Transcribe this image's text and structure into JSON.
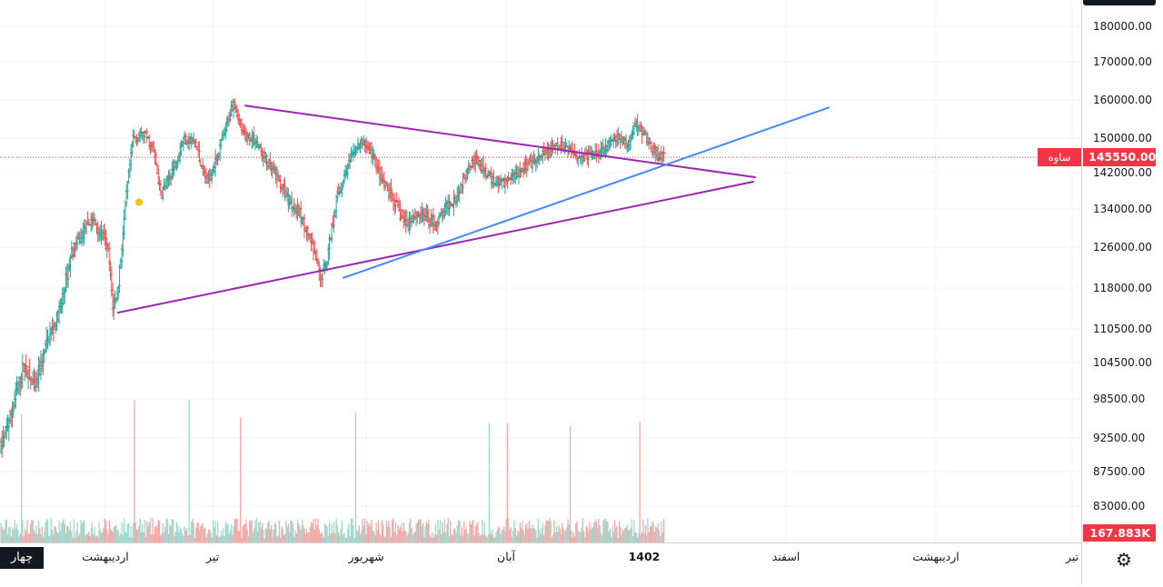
{
  "chart_data": {
    "type": "bar",
    "subtype": "ohlc",
    "symbol": "ساوه",
    "last_price": "145550.00",
    "last_price_value": 145550,
    "volume_label": "167.883K",
    "corner_label": "چهار",
    "price_ticks": [
      180000,
      170000,
      160000,
      150000,
      142000,
      134000,
      126000,
      118000,
      110500,
      104500,
      98500,
      92500,
      87500,
      83000
    ],
    "price_tick_labels": [
      "180000.00",
      "170000.00",
      "160000.00",
      "150000.00",
      "142000.00",
      "134000.00",
      "126000.00",
      "118000.00",
      "110500.00",
      "104500.00",
      "98500.00",
      "92500.00",
      "87500.00",
      "83000.00"
    ],
    "time_labels": [
      {
        "text": "اردیبهشت",
        "bold": false
      },
      {
        "text": "تیر",
        "bold": false
      },
      {
        "text": "شهریور",
        "bold": false
      },
      {
        "text": "آبان",
        "bold": false
      },
      {
        "text": "1402",
        "bold": true
      },
      {
        "text": "اسفند",
        "bold": false
      },
      {
        "text": "اردیبهشت",
        "bold": false
      },
      {
        "text": "تیر",
        "bold": false
      }
    ],
    "series": [
      {
        "name": "ohlc",
        "anchors": [
          [
            0,
            91000
          ],
          [
            10,
            97000
          ],
          [
            20,
            104000
          ],
          [
            30,
            100000
          ],
          [
            40,
            108000
          ],
          [
            52,
            114000
          ],
          [
            62,
            125000
          ],
          [
            70,
            128000
          ],
          [
            80,
            132000
          ],
          [
            90,
            128000
          ],
          [
            94,
            125000
          ],
          [
            98,
            115000
          ],
          [
            102,
            117000
          ],
          [
            106,
            126000
          ],
          [
            110,
            137000
          ],
          [
            116,
            150000
          ],
          [
            126,
            151000
          ],
          [
            134,
            147000
          ],
          [
            140,
            137000
          ],
          [
            146,
            140000
          ],
          [
            154,
            145000
          ],
          [
            160,
            150000
          ],
          [
            170,
            149000
          ],
          [
            180,
            140000
          ],
          [
            186,
            143000
          ],
          [
            196,
            151000
          ],
          [
            204,
            160000
          ],
          [
            212,
            151000
          ],
          [
            222,
            150000
          ],
          [
            232,
            145000
          ],
          [
            242,
            141000
          ],
          [
            252,
            136000
          ],
          [
            262,
            133000
          ],
          [
            272,
            127000
          ],
          [
            280,
            120000
          ],
          [
            286,
            124000
          ],
          [
            294,
            136000
          ],
          [
            302,
            142000
          ],
          [
            310,
            147000
          ],
          [
            318,
            149000
          ],
          [
            326,
            146000
          ],
          [
            334,
            140000
          ],
          [
            344,
            136000
          ],
          [
            354,
            131000
          ],
          [
            364,
            133000
          ],
          [
            374,
            132000
          ],
          [
            382,
            131000
          ],
          [
            392,
            135000
          ],
          [
            400,
            137000
          ],
          [
            410,
            144000
          ],
          [
            416,
            145000
          ],
          [
            424,
            142000
          ],
          [
            432,
            140000
          ],
          [
            442,
            140000
          ],
          [
            456,
            143000
          ],
          [
            466,
            144000
          ],
          [
            476,
            146000
          ],
          [
            486,
            148000
          ],
          [
            496,
            148000
          ],
          [
            506,
            146000
          ],
          [
            518,
            146000
          ],
          [
            530,
            148000
          ],
          [
            542,
            150000
          ],
          [
            550,
            148000
          ],
          [
            556,
            154000
          ],
          [
            564,
            151000
          ],
          [
            572,
            147000
          ],
          [
            581,
            145550
          ]
        ]
      }
    ],
    "volume": {
      "spikes": [
        [
          148,
          98
        ],
        [
          208,
          98
        ],
        [
          24,
          88
        ],
        [
          265,
          86
        ],
        [
          392,
          90
        ],
        [
          538,
          82
        ],
        [
          558,
          82
        ],
        [
          628,
          80
        ],
        [
          704,
          83
        ]
      ]
    },
    "trendlines": [
      {
        "name": "upper-resistance",
        "color": "#9c27b0",
        "from": [
          270,
          158500
        ],
        "to": [
          831,
          141000
        ]
      },
      {
        "name": "lower-support",
        "color": "#9c27b0",
        "from": [
          130,
          113500
        ],
        "to": [
          829,
          140000
        ]
      },
      {
        "name": "rising-trend",
        "color": "#448aff",
        "from": [
          378,
          120000
        ],
        "to": [
          912,
          158000
        ]
      }
    ],
    "marker": {
      "color": "#f7c600",
      "x": 153,
      "price": 135500
    },
    "colors": {
      "up": "#26a69a",
      "down": "#ef5350",
      "vol_up": "#9fd8cd",
      "vol_down": "#f5a7a5",
      "grid": "#f0f3fa",
      "last_line": "#f23645"
    },
    "grid": true
  }
}
